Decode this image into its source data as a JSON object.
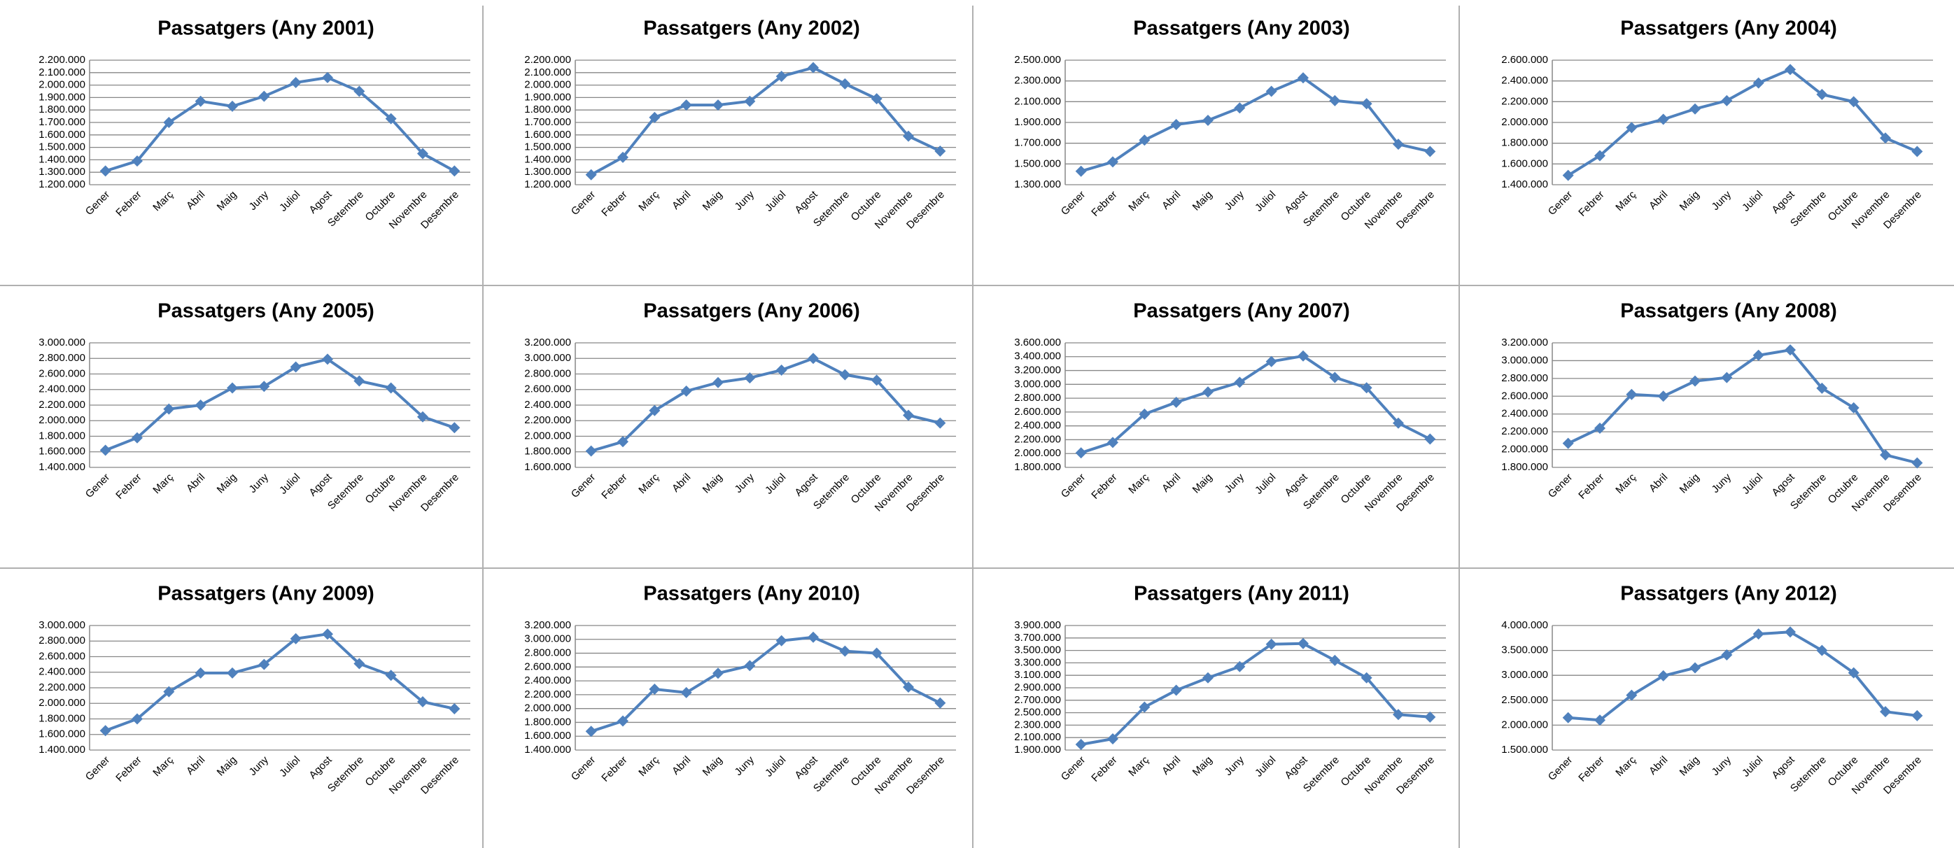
{
  "chart_data": [
    {
      "type": "line",
      "title": "Passatgers (Any 2001)",
      "categories": [
        "Gener",
        "Febrer",
        "Març",
        "Abril",
        "Maig",
        "Juny",
        "Juliol",
        "Agost",
        "Setembre",
        "Octubre",
        "Novembre",
        "Desembre"
      ],
      "color": "#4f81bd",
      "grid": true,
      "values": [
        1310000,
        1390000,
        1700000,
        1870000,
        1830000,
        1910000,
        2020000,
        2060000,
        1950000,
        1730000,
        1450000,
        1310000
      ],
      "ylim": [
        1200000,
        2200000
      ],
      "yticks": [
        {
          "value": 1200000,
          "label": "1.200.000"
        },
        {
          "value": 1300000,
          "label": "1.300.000"
        },
        {
          "value": 1400000,
          "label": "1.400.000"
        },
        {
          "value": 1500000,
          "label": "1.500.000"
        },
        {
          "value": 1600000,
          "label": "1.600.000"
        },
        {
          "value": 1700000,
          "label": "1.700.000"
        },
        {
          "value": 1800000,
          "label": "1.800.000"
        },
        {
          "value": 1900000,
          "label": "1.900.000"
        },
        {
          "value": 2000000,
          "label": "2.000.000"
        },
        {
          "value": 2100000,
          "label": "2.100.000"
        },
        {
          "value": 2200000,
          "label": "2.200.000"
        }
      ]
    },
    {
      "type": "line",
      "title": "Passatgers (Any 2002)",
      "categories": [
        "Gener",
        "Febrer",
        "Març",
        "Abril",
        "Maig",
        "Juny",
        "Juliol",
        "Agost",
        "Setembre",
        "Octubre",
        "Novembre",
        "Desembre"
      ],
      "color": "#4f81bd",
      "grid": true,
      "values": [
        1280000,
        1420000,
        1740000,
        1840000,
        1840000,
        1870000,
        2070000,
        2140000,
        2010000,
        1890000,
        1590000,
        1470000
      ],
      "ylim": [
        1200000,
        2200000
      ],
      "yticks": [
        {
          "value": 1200000,
          "label": "1.200.000"
        },
        {
          "value": 1300000,
          "label": "1.300.000"
        },
        {
          "value": 1400000,
          "label": "1.400.000"
        },
        {
          "value": 1500000,
          "label": "1.500.000"
        },
        {
          "value": 1600000,
          "label": "1.600.000"
        },
        {
          "value": 1700000,
          "label": "1.700.000"
        },
        {
          "value": 1800000,
          "label": "1.800.000"
        },
        {
          "value": 1900000,
          "label": "1.900.000"
        },
        {
          "value": 2000000,
          "label": "2.000.000"
        },
        {
          "value": 2100000,
          "label": "2.100.000"
        },
        {
          "value": 2200000,
          "label": "2.200.000"
        }
      ]
    },
    {
      "type": "line",
      "title": "Passatgers (Any 2003)",
      "categories": [
        "Gener",
        "Febrer",
        "Març",
        "Abril",
        "Maig",
        "Juny",
        "Juliol",
        "Agost",
        "Setembre",
        "Octubre",
        "Novembre",
        "Desembre"
      ],
      "color": "#4f81bd",
      "grid": true,
      "values": [
        1430000,
        1520000,
        1730000,
        1880000,
        1920000,
        2040000,
        2200000,
        2330000,
        2110000,
        2080000,
        1690000,
        1620000
      ],
      "ylim": [
        1300000,
        2500000
      ],
      "yticks": [
        {
          "value": 1300000,
          "label": "1.300.000"
        },
        {
          "value": 1500000,
          "label": "1.500.000"
        },
        {
          "value": 1700000,
          "label": "1.700.000"
        },
        {
          "value": 1900000,
          "label": "1.900.000"
        },
        {
          "value": 2100000,
          "label": "2.100.000"
        },
        {
          "value": 2300000,
          "label": "2.300.000"
        },
        {
          "value": 2500000,
          "label": "2.500.000"
        }
      ]
    },
    {
      "type": "line",
      "title": "Passatgers (Any 2004)",
      "categories": [
        "Gener",
        "Febrer",
        "Març",
        "Abril",
        "Maig",
        "Juny",
        "Juliol",
        "Agost",
        "Setembre",
        "Octubre",
        "Novembre",
        "Desembre"
      ],
      "color": "#4f81bd",
      "grid": true,
      "values": [
        1490000,
        1680000,
        1950000,
        2030000,
        2130000,
        2210000,
        2380000,
        2510000,
        2270000,
        2200000,
        1850000,
        1720000
      ],
      "ylim": [
        1400000,
        2600000
      ],
      "yticks": [
        {
          "value": 1400000,
          "label": "1.400.000"
        },
        {
          "value": 1600000,
          "label": "1.600.000"
        },
        {
          "value": 1800000,
          "label": "1.800.000"
        },
        {
          "value": 2000000,
          "label": "2.000.000"
        },
        {
          "value": 2200000,
          "label": "2.200.000"
        },
        {
          "value": 2400000,
          "label": "2.400.000"
        },
        {
          "value": 2600000,
          "label": "2.600.000"
        }
      ]
    },
    {
      "type": "line",
      "title": "Passatgers (Any 2005)",
      "categories": [
        "Gener",
        "Febrer",
        "Març",
        "Abril",
        "Maig",
        "Juny",
        "Juliol",
        "Agost",
        "Setembre",
        "Octubre",
        "Novembre",
        "Desembre"
      ],
      "color": "#4f81bd",
      "grid": true,
      "values": [
        1620000,
        1780000,
        2150000,
        2200000,
        2420000,
        2440000,
        2690000,
        2790000,
        2510000,
        2420000,
        2050000,
        1910000
      ],
      "ylim": [
        1400000,
        3000000
      ],
      "yticks": [
        {
          "value": 1400000,
          "label": "1.400.000"
        },
        {
          "value": 1600000,
          "label": "1.600.000"
        },
        {
          "value": 1800000,
          "label": "1.800.000"
        },
        {
          "value": 2000000,
          "label": "2.000.000"
        },
        {
          "value": 2200000,
          "label": "2.200.000"
        },
        {
          "value": 2400000,
          "label": "2.400.000"
        },
        {
          "value": 2600000,
          "label": "2.600.000"
        },
        {
          "value": 2800000,
          "label": "2.800.000"
        },
        {
          "value": 3000000,
          "label": "3.000.000"
        }
      ]
    },
    {
      "type": "line",
      "title": "Passatgers (Any 2006)",
      "categories": [
        "Gener",
        "Febrer",
        "Març",
        "Abril",
        "Maig",
        "Juny",
        "Juliol",
        "Agost",
        "Setembre",
        "Octubre",
        "Novembre",
        "Desembre"
      ],
      "color": "#4f81bd",
      "grid": true,
      "values": [
        1810000,
        1930000,
        2330000,
        2580000,
        2690000,
        2750000,
        2850000,
        3000000,
        2790000,
        2720000,
        2270000,
        2170000
      ],
      "ylim": [
        1600000,
        3200000
      ],
      "yticks": [
        {
          "value": 1600000,
          "label": "1.600.000"
        },
        {
          "value": 1800000,
          "label": "1.800.000"
        },
        {
          "value": 2000000,
          "label": "2.000.000"
        },
        {
          "value": 2200000,
          "label": "2.200.000"
        },
        {
          "value": 2400000,
          "label": "2.400.000"
        },
        {
          "value": 2600000,
          "label": "2.600.000"
        },
        {
          "value": 2800000,
          "label": "2.800.000"
        },
        {
          "value": 3000000,
          "label": "3.000.000"
        },
        {
          "value": 3200000,
          "label": "3.200.000"
        }
      ]
    },
    {
      "type": "line",
      "title": "Passatgers (Any 2007)",
      "categories": [
        "Gener",
        "Febrer",
        "Març",
        "Abril",
        "Maig",
        "Juny",
        "Juliol",
        "Agost",
        "Setembre",
        "Octubre",
        "Novembre",
        "Desembre"
      ],
      "color": "#4f81bd",
      "grid": true,
      "values": [
        2010000,
        2160000,
        2570000,
        2740000,
        2890000,
        3030000,
        3330000,
        3410000,
        3100000,
        2950000,
        2440000,
        2210000
      ],
      "ylim": [
        1800000,
        3600000
      ],
      "yticks": [
        {
          "value": 1800000,
          "label": "1.800.000"
        },
        {
          "value": 2000000,
          "label": "2.000.000"
        },
        {
          "value": 2200000,
          "label": "2.200.000"
        },
        {
          "value": 2400000,
          "label": "2.400.000"
        },
        {
          "value": 2600000,
          "label": "2.600.000"
        },
        {
          "value": 2800000,
          "label": "2.800.000"
        },
        {
          "value": 3000000,
          "label": "3.000.000"
        },
        {
          "value": 3200000,
          "label": "3.200.000"
        },
        {
          "value": 3400000,
          "label": "3.400.000"
        },
        {
          "value": 3600000,
          "label": "3.600.000"
        }
      ]
    },
    {
      "type": "line",
      "title": "Passatgers (Any 2008)",
      "categories": [
        "Gener",
        "Febrer",
        "Març",
        "Abril",
        "Maig",
        "Juny",
        "Juliol",
        "Agost",
        "Setembre",
        "Octubre",
        "Novembre",
        "Desembre"
      ],
      "color": "#4f81bd",
      "grid": true,
      "values": [
        2070000,
        2240000,
        2620000,
        2600000,
        2770000,
        2810000,
        3060000,
        3120000,
        2690000,
        2470000,
        1940000,
        1850000
      ],
      "ylim": [
        1800000,
        3200000
      ],
      "yticks": [
        {
          "value": 1800000,
          "label": "1.800.000"
        },
        {
          "value": 2000000,
          "label": "2.000.000"
        },
        {
          "value": 2200000,
          "label": "2.200.000"
        },
        {
          "value": 2400000,
          "label": "2.400.000"
        },
        {
          "value": 2600000,
          "label": "2.600.000"
        },
        {
          "value": 2800000,
          "label": "2.800.000"
        },
        {
          "value": 3000000,
          "label": "3.000.000"
        },
        {
          "value": 3200000,
          "label": "3.200.000"
        }
      ]
    },
    {
      "type": "line",
      "title": "Passatgers (Any 2009)",
      "categories": [
        "Gener",
        "Febrer",
        "Març",
        "Abril",
        "Maig",
        "Juny",
        "Juliol",
        "Agost",
        "Setembre",
        "Octubre",
        "Novembre",
        "Desembre"
      ],
      "color": "#4f81bd",
      "grid": true,
      "values": [
        1650000,
        1800000,
        2150000,
        2390000,
        2390000,
        2500000,
        2830000,
        2890000,
        2510000,
        2360000,
        2020000,
        1930000
      ],
      "ylim": [
        1400000,
        3000000
      ],
      "yticks": [
        {
          "value": 1400000,
          "label": "1.400.000"
        },
        {
          "value": 1600000,
          "label": "1.600.000"
        },
        {
          "value": 1800000,
          "label": "1.800.000"
        },
        {
          "value": 2000000,
          "label": "2.000.000"
        },
        {
          "value": 2200000,
          "label": "2.200.000"
        },
        {
          "value": 2400000,
          "label": "2.400.000"
        },
        {
          "value": 2600000,
          "label": "2.600.000"
        },
        {
          "value": 2800000,
          "label": "2.800.000"
        },
        {
          "value": 3000000,
          "label": "3.000.000"
        }
      ]
    },
    {
      "type": "line",
      "title": "Passatgers (Any 2010)",
      "categories": [
        "Gener",
        "Febrer",
        "Març",
        "Abril",
        "Maig",
        "Juny",
        "Juliol",
        "Agost",
        "Setembre",
        "Octubre",
        "Novembre",
        "Desembre"
      ],
      "color": "#4f81bd",
      "grid": true,
      "values": [
        1670000,
        1820000,
        2280000,
        2230000,
        2510000,
        2620000,
        2980000,
        3030000,
        2830000,
        2800000,
        2310000,
        2080000
      ],
      "ylim": [
        1400000,
        3200000
      ],
      "yticks": [
        {
          "value": 1400000,
          "label": "1.400.000"
        },
        {
          "value": 1600000,
          "label": "1.600.000"
        },
        {
          "value": 1800000,
          "label": "1.800.000"
        },
        {
          "value": 2000000,
          "label": "2.000.000"
        },
        {
          "value": 2200000,
          "label": "2.200.000"
        },
        {
          "value": 2400000,
          "label": "2.400.000"
        },
        {
          "value": 2600000,
          "label": "2.600.000"
        },
        {
          "value": 2800000,
          "label": "2.800.000"
        },
        {
          "value": 3000000,
          "label": "3.000.000"
        },
        {
          "value": 3200000,
          "label": "3.200.000"
        }
      ]
    },
    {
      "type": "line",
      "title": "Passatgers (Any 2011)",
      "categories": [
        "Gener",
        "Febrer",
        "Març",
        "Abril",
        "Maig",
        "Juny",
        "Juliol",
        "Agost",
        "Setembre",
        "Octubre",
        "Novembre",
        "Desembre"
      ],
      "color": "#4f81bd",
      "grid": true,
      "values": [
        1990000,
        2080000,
        2590000,
        2860000,
        3060000,
        3240000,
        3600000,
        3610000,
        3340000,
        3060000,
        2470000,
        2430000
      ],
      "ylim": [
        1900000,
        3900000
      ],
      "yticks": [
        {
          "value": 1900000,
          "label": "1.900.000"
        },
        {
          "value": 2100000,
          "label": "2.100.000"
        },
        {
          "value": 2300000,
          "label": "2.300.000"
        },
        {
          "value": 2500000,
          "label": "2.500.000"
        },
        {
          "value": 2700000,
          "label": "2.700.000"
        },
        {
          "value": 2900000,
          "label": "2.900.000"
        },
        {
          "value": 3100000,
          "label": "3.100.000"
        },
        {
          "value": 3300000,
          "label": "3.300.000"
        },
        {
          "value": 3500000,
          "label": "3.500.000"
        },
        {
          "value": 3700000,
          "label": "3.700.000"
        },
        {
          "value": 3900000,
          "label": "3.900.000"
        }
      ]
    },
    {
      "type": "line",
      "title": "Passatgers (Any 2012)",
      "categories": [
        "Gener",
        "Febrer",
        "Març",
        "Abril",
        "Maig",
        "Juny",
        "Juliol",
        "Agost",
        "Setembre",
        "Octubre",
        "Novembre",
        "Desembre"
      ],
      "color": "#4f81bd",
      "grid": true,
      "values": [
        2150000,
        2100000,
        2600000,
        2990000,
        3150000,
        3410000,
        3830000,
        3870000,
        3500000,
        3050000,
        2270000,
        2190000
      ],
      "ylim": [
        1500000,
        4000000
      ],
      "yticks": [
        {
          "value": 1500000,
          "label": "1.500.000"
        },
        {
          "value": 2000000,
          "label": "2.000.000"
        },
        {
          "value": 2500000,
          "label": "2.500.000"
        },
        {
          "value": 3000000,
          "label": "3.000.000"
        },
        {
          "value": 3500000,
          "label": "3.500.000"
        },
        {
          "value": 4000000,
          "label": "4.000.000"
        }
      ]
    }
  ]
}
